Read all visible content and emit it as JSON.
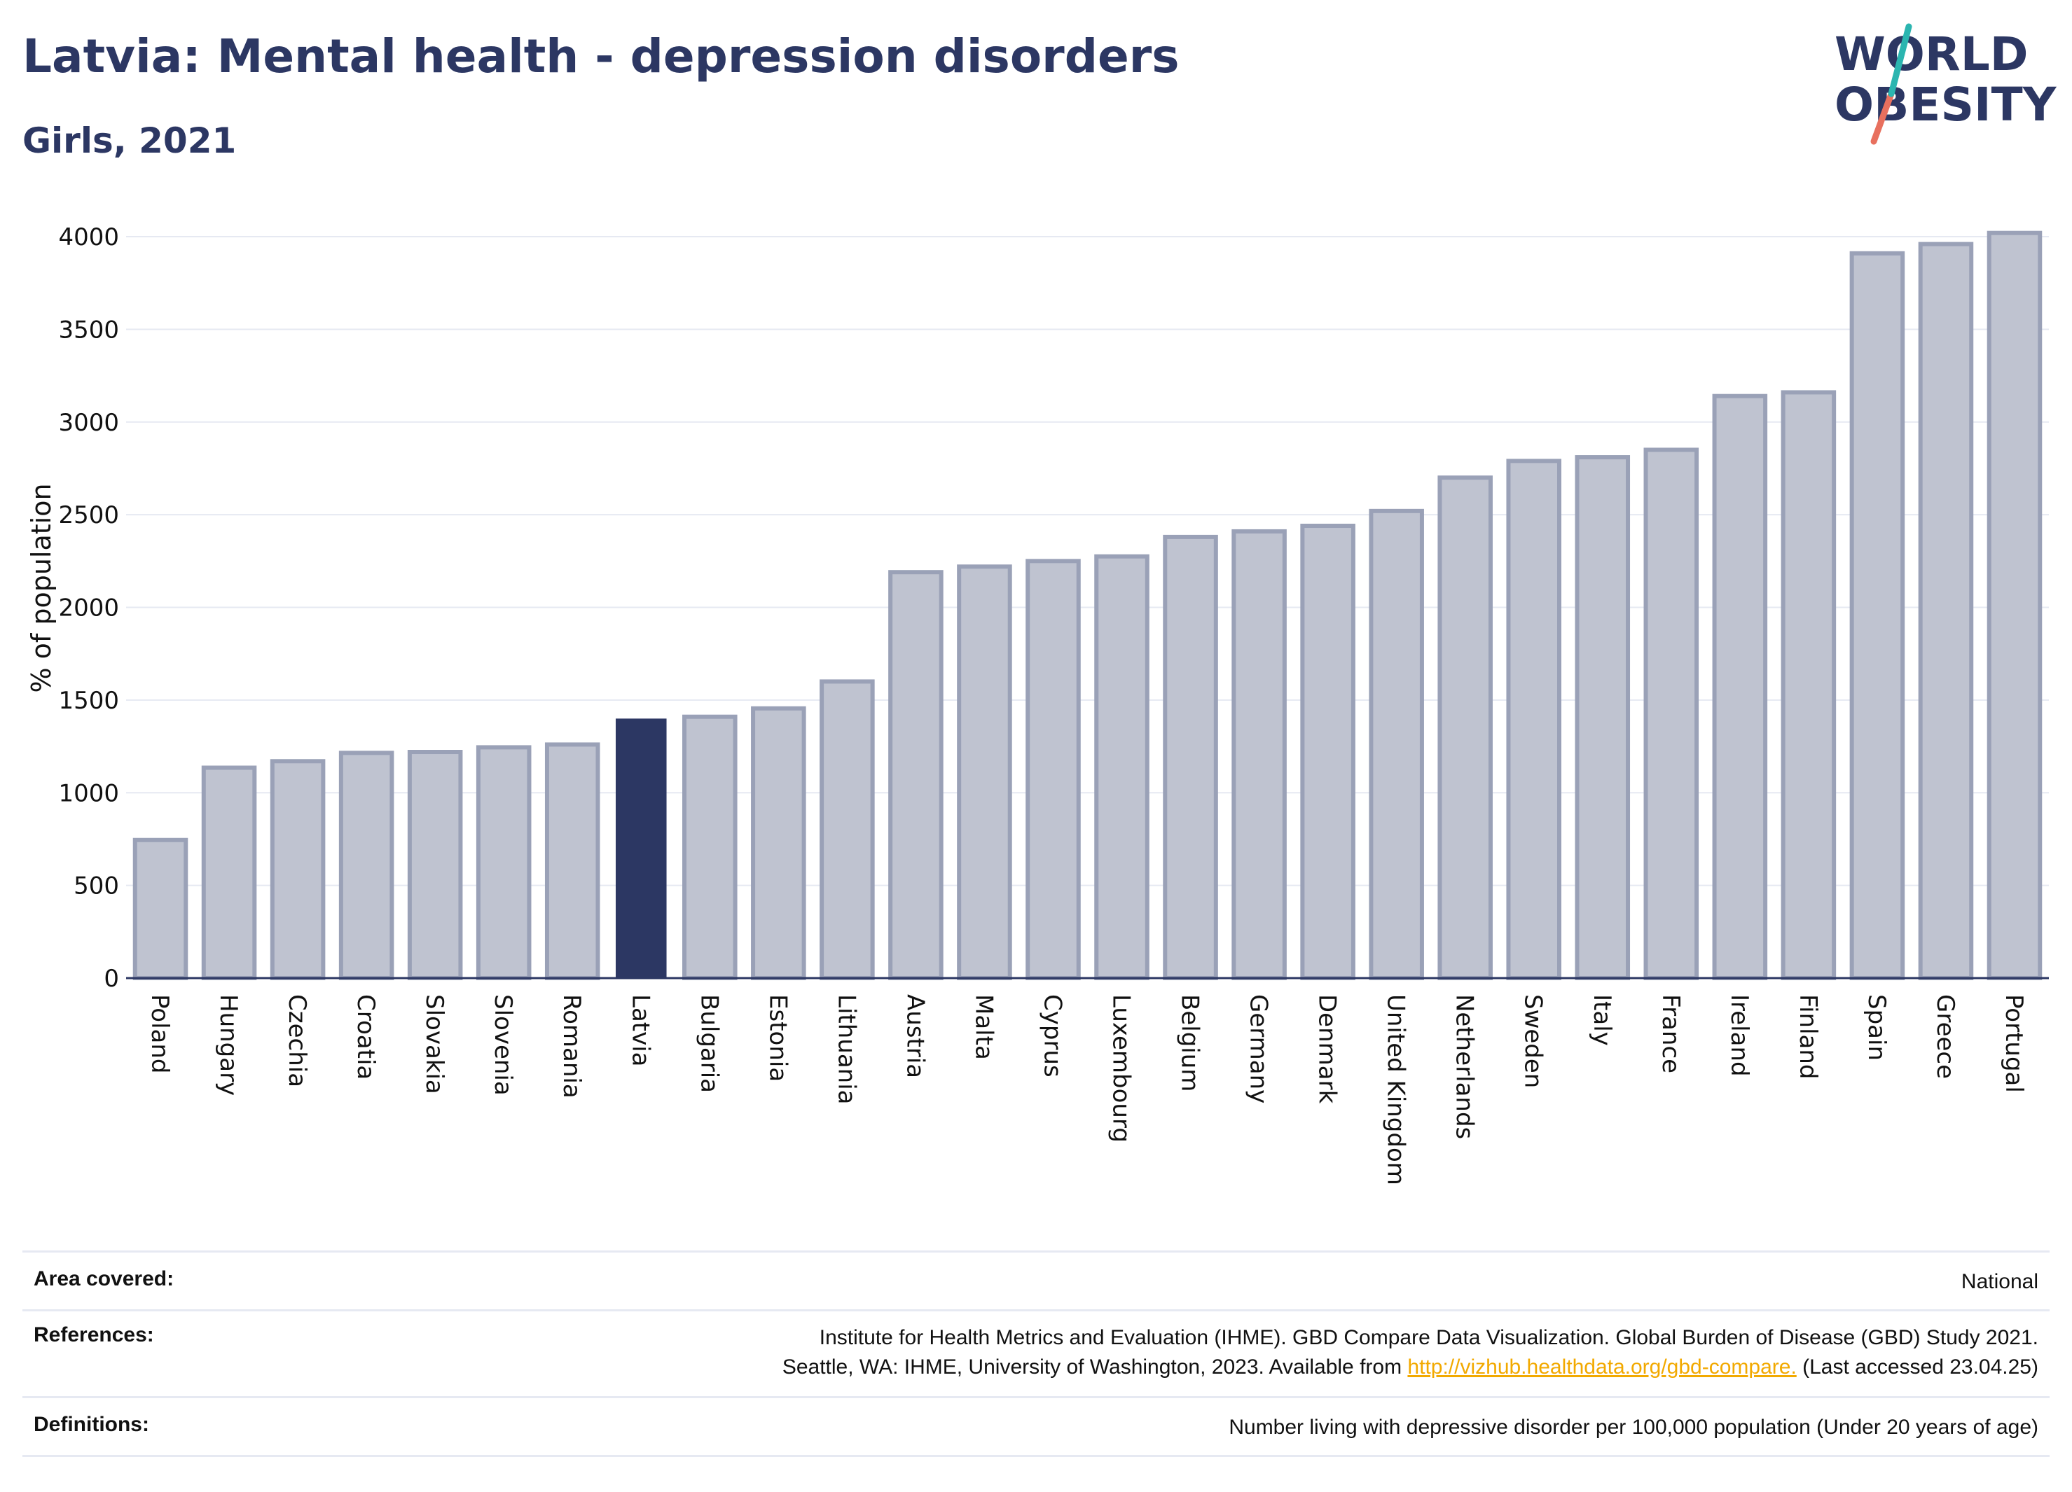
{
  "title": "Latvia: Mental health - depression disorders",
  "subtitle": "Girls, 2021",
  "logo": {
    "line1": "WORLD",
    "line2": "OBESITY"
  },
  "colors": {
    "highlight": "#2c3763",
    "bar_fill": "#bfc3d0",
    "bar_stroke": "#9aa1b7",
    "heading": "#2c3763",
    "grid": "#e6e9f2",
    "link": "#f2a900",
    "logo_teal": "#2bb5b0",
    "logo_coral": "#e8705e"
  },
  "chart_data": {
    "type": "bar",
    "title": "Latvia: Mental health - depression disorders",
    "subtitle": "Girls, 2021",
    "xlabel": "",
    "ylabel": "% of population",
    "ylim": [
      0,
      4100
    ],
    "yticks": [
      0,
      500,
      1000,
      1500,
      2000,
      2500,
      3000,
      3500,
      4000
    ],
    "grid": true,
    "highlight": "Latvia",
    "categories": [
      "Poland",
      "Hungary",
      "Czechia",
      "Croatia",
      "Slovakia",
      "Slovenia",
      "Romania",
      "Latvia",
      "Bulgaria",
      "Estonia",
      "Lithuania",
      "Austria",
      "Malta",
      "Cyprus",
      "Luxembourg",
      "Belgium",
      "Germany",
      "Denmark",
      "United Kingdom",
      "Netherlands",
      "Sweden",
      "Italy",
      "France",
      "Ireland",
      "Finland",
      "Spain",
      "Greece",
      "Portugal"
    ],
    "values": [
      745,
      1135,
      1170,
      1215,
      1220,
      1245,
      1260,
      1400,
      1410,
      1455,
      1600,
      2190,
      2220,
      2250,
      2275,
      2380,
      2410,
      2440,
      2520,
      2700,
      2790,
      2810,
      2850,
      3140,
      3160,
      3910,
      3960,
      4020
    ]
  },
  "footer": {
    "area": {
      "label": "Area covered:",
      "value": "National"
    },
    "references": {
      "label": "References:",
      "line1": "Institute for Health Metrics and Evaluation (IHME). GBD Compare Data Visualization. Global Burden of Disease (GBD) Study 2021.",
      "line2_pre": "Seattle, WA: IHME, University of Washington, 2023. Available from ",
      "link": "http://vizhub.healthdata.org/gbd-compare.",
      "line2_post": " (Last accessed 23.04.25)"
    },
    "definitions": {
      "label": "Definitions:",
      "value": "Number living with depressive disorder per 100,000 population (Under 20 years of age)"
    }
  }
}
